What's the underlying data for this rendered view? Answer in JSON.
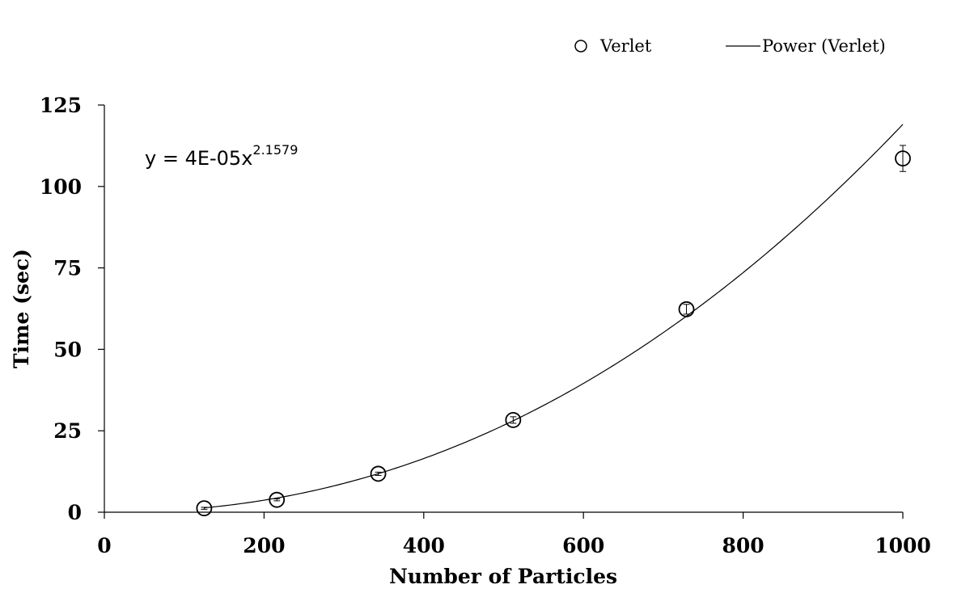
{
  "chart_data": {
    "type": "scatter",
    "xlabel": "Number of Particles",
    "ylabel": "Time (sec)",
    "xlim": [
      0,
      1000
    ],
    "ylim": [
      0,
      125
    ],
    "x_ticks": [
      0,
      200,
      400,
      600,
      800,
      1000
    ],
    "y_ticks": [
      0,
      25,
      50,
      75,
      100,
      125
    ],
    "grid": false,
    "legend_position": "top-right",
    "series": [
      {
        "name": "Verlet",
        "marker": "open-circle",
        "x": [
          125,
          216,
          343,
          512,
          729,
          1000
        ],
        "y": [
          1.2,
          3.8,
          11.8,
          28.3,
          62.3,
          108.6
        ],
        "error": [
          0.3,
          0.3,
          0.5,
          1.0,
          1.5,
          4.0
        ]
      }
    ],
    "trendline": {
      "name": "Power (Verlet)",
      "type": "power",
      "coefficient": 4e-05,
      "exponent": 2.1579,
      "equation_prefix": "y = 4E-05x",
      "equation_exponent": "2.1579"
    }
  }
}
